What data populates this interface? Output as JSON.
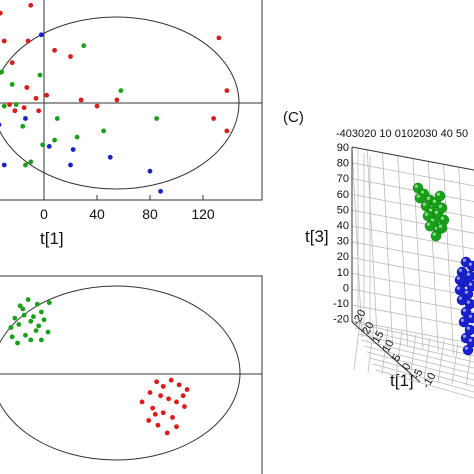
{
  "chart_data": [
    {
      "panel": "A",
      "type": "scatter",
      "xlabel": "t[1]",
      "xticks": [
        0,
        40,
        80,
        120
      ],
      "xlim": [
        -42,
        155
      ],
      "ylim": [
        -60,
        65
      ],
      "colors": {
        "red": "#e01818",
        "blue": "#1820d0",
        "green": "#18a018"
      },
      "series": [
        {
          "color": "red",
          "points": [
            [
              -33,
              58
            ],
            [
              -10,
              63
            ],
            [
              -30,
              40
            ],
            [
              -12,
              40
            ],
            [
              8,
              34
            ],
            [
              20,
              30
            ],
            [
              -13,
              10
            ],
            [
              -6,
              3
            ],
            [
              2,
              5
            ],
            [
              -26,
              -1
            ],
            [
              -15,
              -3
            ],
            [
              -4,
              -5
            ],
            [
              28,
              2
            ],
            [
              40,
              -2
            ],
            [
              55,
              2
            ],
            [
              132,
              42
            ],
            [
              138,
              8
            ],
            [
              128,
              -10
            ],
            [
              138,
              -18
            ],
            [
              -24,
              26
            ],
            [
              -22,
              -5
            ]
          ]
        },
        {
          "color": "blue",
          "points": [
            [
              -2,
              44
            ],
            [
              -14,
              -10
            ],
            [
              -38,
              -23
            ],
            [
              -37,
              -30
            ],
            [
              4,
              -28
            ],
            [
              22,
              -30
            ],
            [
              50,
              -35
            ],
            [
              80,
              -44
            ],
            [
              88,
              -57
            ],
            [
              -34,
              -14
            ],
            [
              -30,
              -40
            ],
            [
              20,
              -40
            ]
          ]
        },
        {
          "color": "green",
          "points": [
            [
              30,
              37
            ],
            [
              -30,
              -2
            ],
            [
              -3,
              18
            ],
            [
              -14,
              -40
            ],
            [
              -21,
              -1
            ],
            [
              -10,
              -38
            ],
            [
              -16,
              -15
            ],
            [
              8,
              -24
            ],
            [
              25,
              -22
            ],
            [
              -1,
              -27
            ],
            [
              45,
              -18
            ],
            [
              85,
              -10
            ],
            [
              -32,
              20
            ],
            [
              -24,
              12
            ],
            [
              10,
              -10
            ],
            [
              58,
              8
            ]
          ]
        }
      ]
    },
    {
      "panel": "B",
      "type": "scatter",
      "xlim": [
        -42,
        155
      ],
      "ylim": [
        -60,
        60
      ],
      "series": [
        {
          "color": "green",
          "points": [
            [
              -18,
              44
            ],
            [
              -12,
              48
            ],
            [
              -5,
              45
            ],
            [
              4,
              46
            ],
            [
              -22,
              36
            ],
            [
              -15,
              38
            ],
            [
              -8,
              37
            ],
            [
              -2,
              40
            ],
            [
              -25,
              30
            ],
            [
              -19,
              32
            ],
            [
              -10,
              34
            ],
            [
              -16,
              42
            ],
            [
              -4,
              31
            ],
            [
              -24,
              24
            ],
            [
              -14,
              25
            ],
            [
              -6,
              28
            ],
            [
              0,
              35
            ],
            [
              3,
              27
            ],
            [
              -20,
              20
            ],
            [
              -10,
              22
            ],
            [
              -2,
              22
            ]
          ]
        },
        {
          "color": "red",
          "points": [
            [
              85,
              -5
            ],
            [
              96,
              -4
            ],
            [
              102,
              -7
            ],
            [
              108,
              -10
            ],
            [
              80,
              -12
            ],
            [
              88,
              -14
            ],
            [
              94,
              -16
            ],
            [
              100,
              -18
            ],
            [
              106,
              -21
            ],
            [
              74,
              -18
            ],
            [
              82,
              -22
            ],
            [
              90,
              -25
            ],
            [
              97,
              -28
            ],
            [
              79,
              -30
            ],
            [
              86,
              -33
            ],
            [
              93,
              -38
            ],
            [
              100,
              -34
            ],
            [
              90,
              -8
            ],
            [
              105,
              -14
            ],
            [
              84,
              -26
            ]
          ]
        }
      ]
    },
    {
      "panel": "C",
      "type": "scatter",
      "panel_label": "(C)",
      "zlabel": "t[3]",
      "xlabel": "t[1]",
      "zticks": [
        "90",
        "80",
        "70",
        "60",
        "50",
        "40",
        "30",
        "20",
        "10",
        "0",
        "-10",
        "-20"
      ],
      "top_ticks": "-403020 10 0102030 40 50",
      "left_ticks": [
        "-20",
        "20",
        "15",
        "10",
        "5",
        "0",
        "-5",
        "-10"
      ],
      "series": [
        {
          "color": "green",
          "cluster": "top-left"
        },
        {
          "color": "blue",
          "cluster": "bottom-right"
        }
      ]
    }
  ]
}
